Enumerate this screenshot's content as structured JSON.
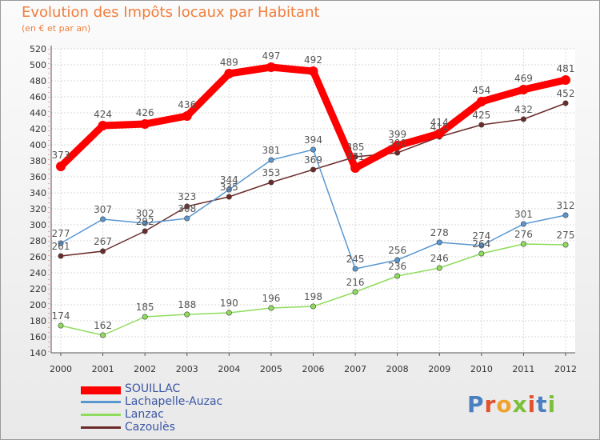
{
  "header": {
    "title": "Evolution des Impôts locaux par Habitant",
    "subtitle": "(en € et par an)"
  },
  "brand": {
    "logo_text": "Proxiti"
  },
  "chart_data": {
    "type": "line",
    "title": "Evolution des Impôts locaux par Habitant",
    "subtitle": "(en € et par an)",
    "xlabel": "",
    "ylabel": "",
    "ylim": [
      140,
      520
    ],
    "ytick_step": 20,
    "grid": true,
    "legend_position": "bottom-left",
    "categories": [
      "2000",
      "2001",
      "2002",
      "2003",
      "2004",
      "2005",
      "2006",
      "2007",
      "2008",
      "2009",
      "2010",
      "2011",
      "2012"
    ],
    "series": [
      {
        "name": "SOUILLAC",
        "color": "#ff0000",
        "values": [
          373,
          424,
          426,
          436,
          489,
          497,
          492,
          371,
          399,
          414,
          454,
          469,
          481
        ]
      },
      {
        "name": "Lachapelle-Auzac",
        "color": "#5a97d1",
        "values": [
          277,
          307,
          302,
          308,
          344,
          381,
          394,
          245,
          256,
          278,
          274,
          301,
          312
        ]
      },
      {
        "name": "Lanzac",
        "color": "#8fdc5c",
        "values": [
          174,
          162,
          185,
          188,
          190,
          196,
          198,
          216,
          236,
          246,
          264,
          276,
          275
        ]
      },
      {
        "name": "Cazoulès",
        "color": "#6b2b2b",
        "values": [
          261,
          267,
          292,
          323,
          335,
          353,
          369,
          385,
          390,
          410,
          425,
          432,
          452
        ]
      }
    ]
  }
}
